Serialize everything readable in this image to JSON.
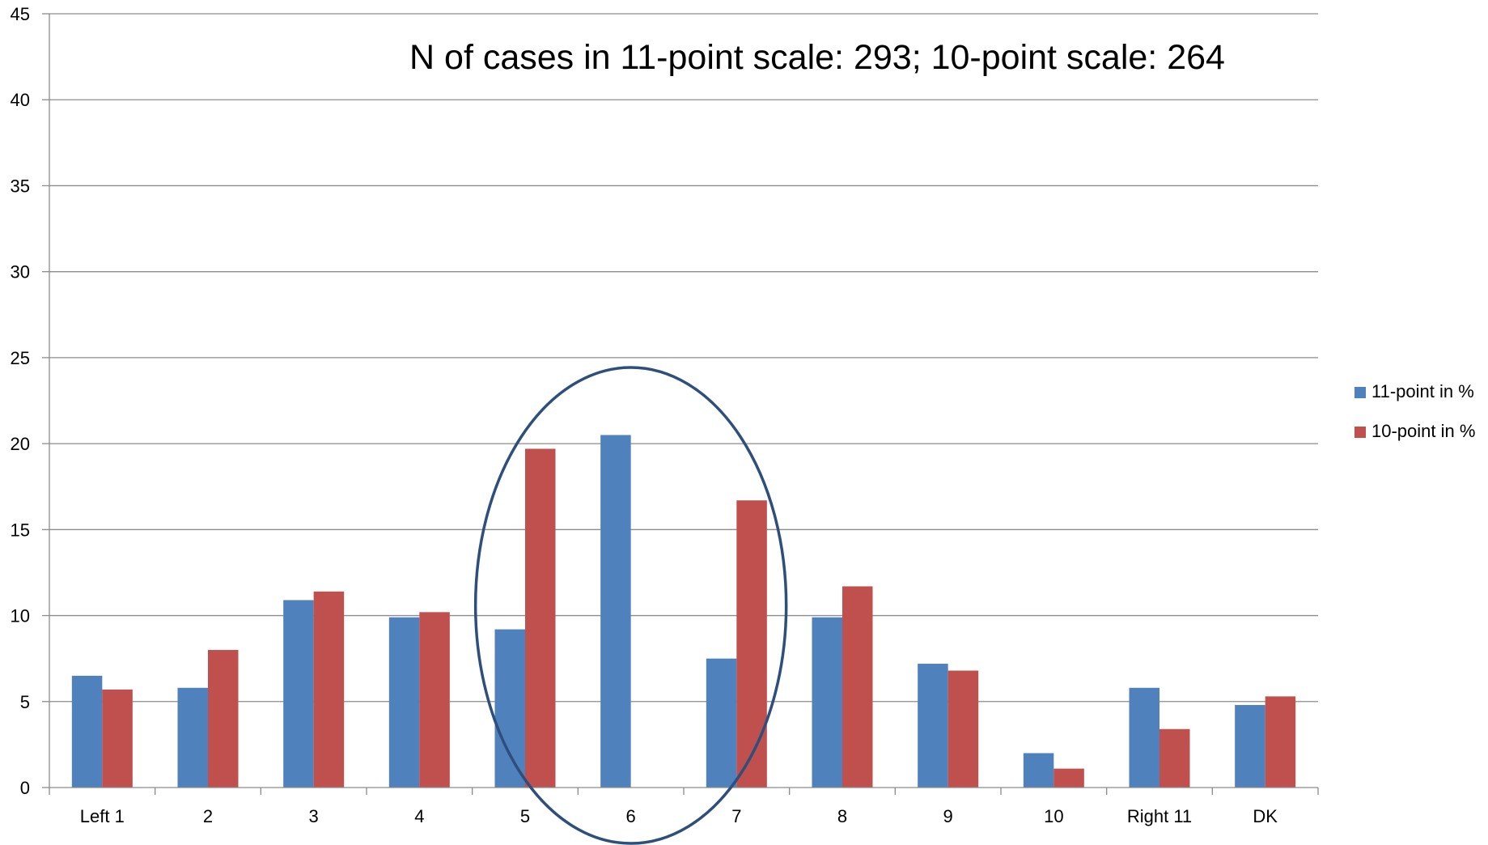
{
  "chart_data": {
    "type": "bar",
    "title": "",
    "xlabel": "",
    "ylabel": "",
    "annotation": "N of cases in 11-point scale: 293; 10-point scale: 264",
    "categories": [
      "Left 1",
      "2",
      "3",
      "4",
      "5",
      "6",
      "7",
      "8",
      "9",
      "10",
      "Right 11",
      "DK"
    ],
    "series": [
      {
        "name": "11-point in %",
        "color": "#4F81BD",
        "values": [
          6.5,
          5.8,
          10.9,
          9.9,
          9.2,
          20.5,
          7.5,
          9.9,
          7.2,
          2.0,
          5.8,
          4.8
        ]
      },
      {
        "name": "10-point in %",
        "color": "#C0504D",
        "values": [
          5.7,
          8.0,
          11.4,
          10.2,
          19.7,
          null,
          16.7,
          11.7,
          6.8,
          1.1,
          3.4,
          5.3
        ]
      }
    ],
    "ylim": [
      0,
      45
    ],
    "yticks": [
      0,
      5,
      10,
      15,
      20,
      25,
      30,
      35,
      40,
      45
    ],
    "grid": true,
    "legend_position": "right",
    "highlight": {
      "shape": "ellipse",
      "categories": [
        "5",
        "6",
        "7"
      ],
      "color": "#2E4F7C"
    }
  }
}
